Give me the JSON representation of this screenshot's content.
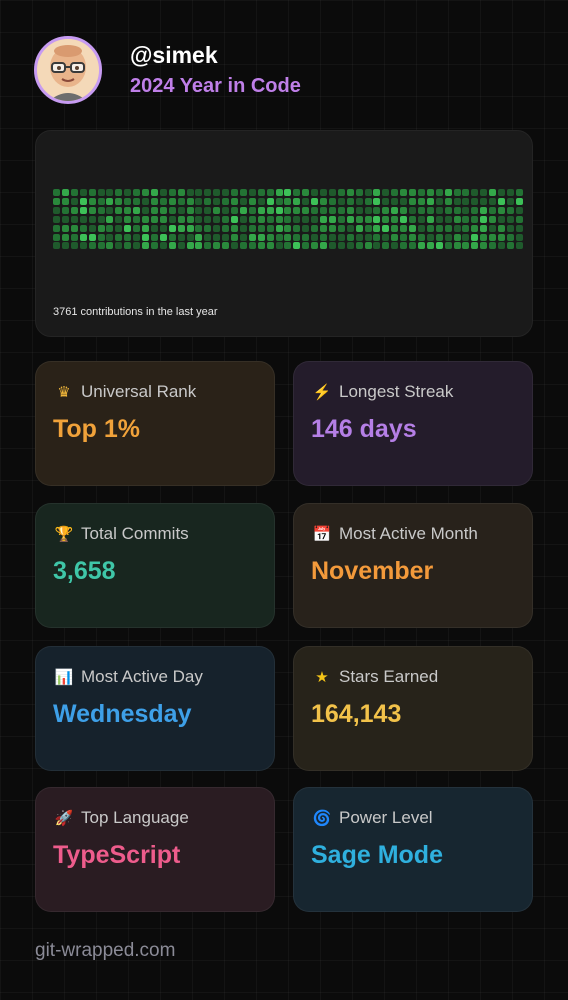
{
  "profile": {
    "username": "@simek",
    "subtitle": "2024 Year in Code"
  },
  "contributions": {
    "summary": "3761 contributions in the last year"
  },
  "stats": [
    {
      "label": "Universal Rank",
      "value": "Top 1%",
      "icon": "crown-icon",
      "glyph": "♛",
      "icon_color": "#f0b63a",
      "value_color": "#f0a23a",
      "bg": "#2a2218"
    },
    {
      "label": "Longest Streak",
      "value": "146 days",
      "icon": "lightning-icon",
      "glyph": "⚡",
      "icon_color": "#f5c518",
      "value_color": "#b57fe6",
      "bg": "#241c2b"
    },
    {
      "label": "Total Commits",
      "value": "3,658",
      "icon": "trophy-icon",
      "glyph": "🏆",
      "icon_color": "#f0b63a",
      "value_color": "#3fc6a8",
      "bg": "#18261f"
    },
    {
      "label": "Most Active Month",
      "value": "November",
      "icon": "calendar-icon",
      "glyph": "📅",
      "icon_color": "#d0d0d0",
      "value_color": "#f39a3b",
      "bg": "#28221b"
    },
    {
      "label": "Most Active Day",
      "value": "Wednesday",
      "icon": "bar-chart-icon",
      "glyph": "📊",
      "icon_color": "#4aa3e8",
      "value_color": "#3ea0e8",
      "bg": "#16222c"
    },
    {
      "label": "Stars Earned",
      "value": "164,143",
      "icon": "star-icon",
      "glyph": "★",
      "icon_color": "#f5c518",
      "value_color": "#f2c24a",
      "bg": "#27231a"
    },
    {
      "label": "Top Language",
      "value": "TypeScript",
      "icon": "rocket-icon",
      "glyph": "🚀",
      "icon_color": "#e45a7a",
      "value_color": "#ee5c8c",
      "bg": "#2a1c22"
    },
    {
      "label": "Power Level",
      "value": "Sage Mode",
      "icon": "spiral-icon",
      "glyph": "🌀",
      "icon_color": "#3a6fd6",
      "value_color": "#2fb0de",
      "bg": "#172630"
    }
  ],
  "footer": {
    "text": "git-wrapped.com"
  }
}
